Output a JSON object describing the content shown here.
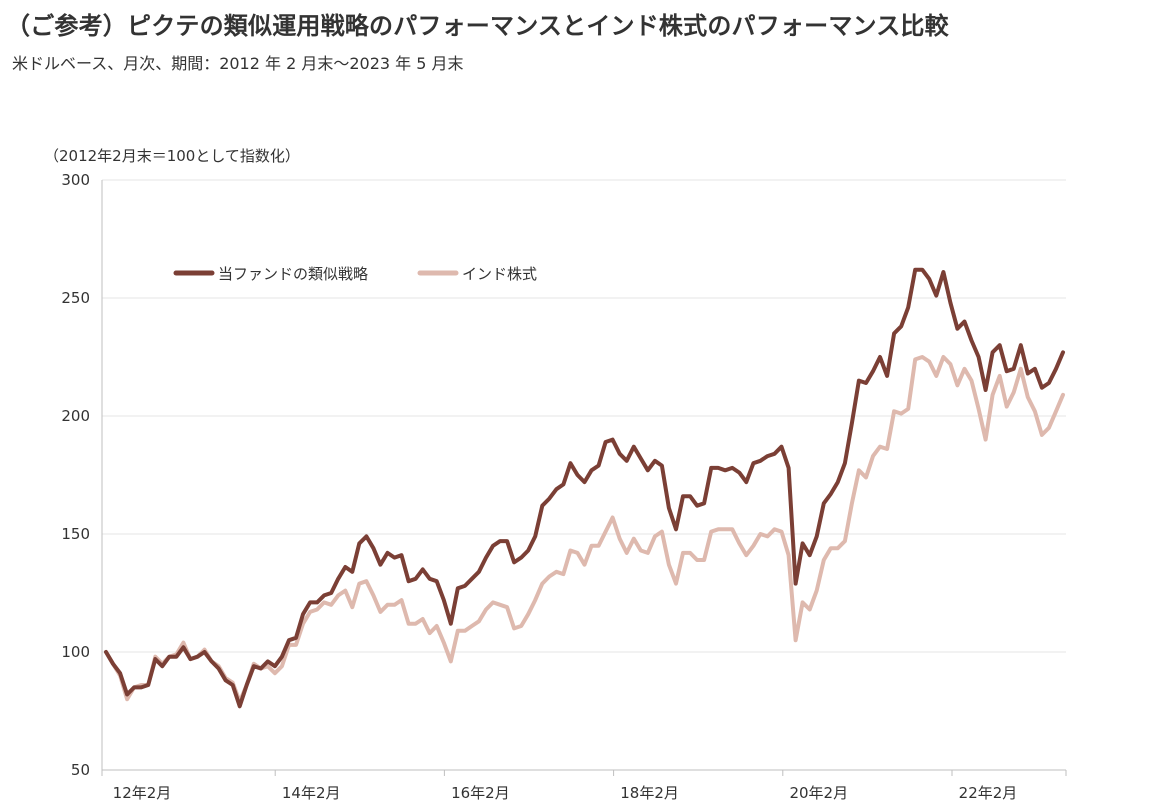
{
  "header": {
    "title": "（ご参考）ピクテの類似運用戦略のパフォーマンスとインド株式のパフォーマンス比較",
    "subtitle": "米ドルベース、月次、期間：2012 年 2 月末～2023 年 5 月末"
  },
  "chart_data": {
    "type": "line",
    "ylabel": "（2012年2月末＝100として指数化）",
    "ylim": [
      50,
      300
    ],
    "yticks": [
      50,
      100,
      150,
      200,
      250,
      300
    ],
    "xticks": [
      "12年2月",
      "14年2月",
      "16年2月",
      "18年2月",
      "20年2月",
      "22年2月"
    ],
    "grid": true,
    "legend_position": "top-left",
    "x_start": "2012-02",
    "x_end": "2023-05",
    "series": [
      {
        "name": "当ファンドの類似戦略",
        "color": "#7b3f35",
        "values": [
          100,
          95,
          91,
          82,
          85,
          85,
          86,
          97,
          94,
          98,
          98,
          102,
          97,
          98,
          100,
          96,
          93,
          88,
          86,
          77,
          86,
          94,
          93,
          96,
          94,
          98,
          105,
          106,
          116,
          121,
          121,
          124,
          125,
          131,
          136,
          134,
          146,
          149,
          144,
          137,
          142,
          140,
          141,
          130,
          131,
          135,
          131,
          130,
          122,
          112,
          127,
          128,
          131,
          134,
          140,
          145,
          147,
          147,
          138,
          140,
          143,
          149,
          162,
          165,
          169,
          171,
          180,
          175,
          172,
          177,
          179,
          189,
          190,
          184,
          181,
          187,
          182,
          177,
          181,
          179,
          161,
          152,
          166,
          166,
          162,
          163,
          178,
          178,
          177,
          178,
          176,
          172,
          180,
          181,
          183,
          184,
          187,
          178,
          129,
          146,
          141,
          149,
          163,
          167,
          172,
          180,
          197,
          215,
          214,
          219,
          225,
          217,
          235,
          238,
          246,
          262,
          262,
          258,
          251,
          261,
          248,
          237,
          240,
          232,
          225,
          211,
          227,
          230,
          219,
          220,
          230,
          218,
          220,
          212,
          214,
          220,
          227
        ]
      },
      {
        "name": "インド株式",
        "color": "#deb9ae",
        "values": [
          100,
          95,
          90,
          80,
          85,
          86,
          86,
          98,
          95,
          98,
          99,
          104,
          97,
          98,
          101,
          96,
          94,
          89,
          87,
          79,
          86,
          95,
          93,
          94,
          91,
          94,
          103,
          103,
          112,
          117,
          118,
          121,
          120,
          124,
          126,
          119,
          129,
          130,
          124,
          117,
          120,
          120,
          122,
          112,
          112,
          114,
          108,
          111,
          104,
          96,
          109,
          109,
          111,
          113,
          118,
          121,
          120,
          119,
          110,
          111,
          116,
          122,
          129,
          132,
          134,
          133,
          143,
          142,
          137,
          145,
          145,
          151,
          157,
          148,
          142,
          148,
          143,
          142,
          149,
          151,
          137,
          129,
          142,
          142,
          139,
          139,
          151,
          152,
          152,
          152,
          146,
          141,
          145,
          150,
          149,
          152,
          151,
          141,
          105,
          121,
          118,
          126,
          139,
          144,
          144,
          147,
          163,
          177,
          174,
          183,
          187,
          186,
          202,
          201,
          203,
          224,
          225,
          223,
          217,
          225,
          222,
          213,
          220,
          215,
          203,
          190,
          209,
          217,
          204,
          210,
          220,
          208,
          202,
          192,
          195,
          202,
          209
        ]
      }
    ]
  }
}
